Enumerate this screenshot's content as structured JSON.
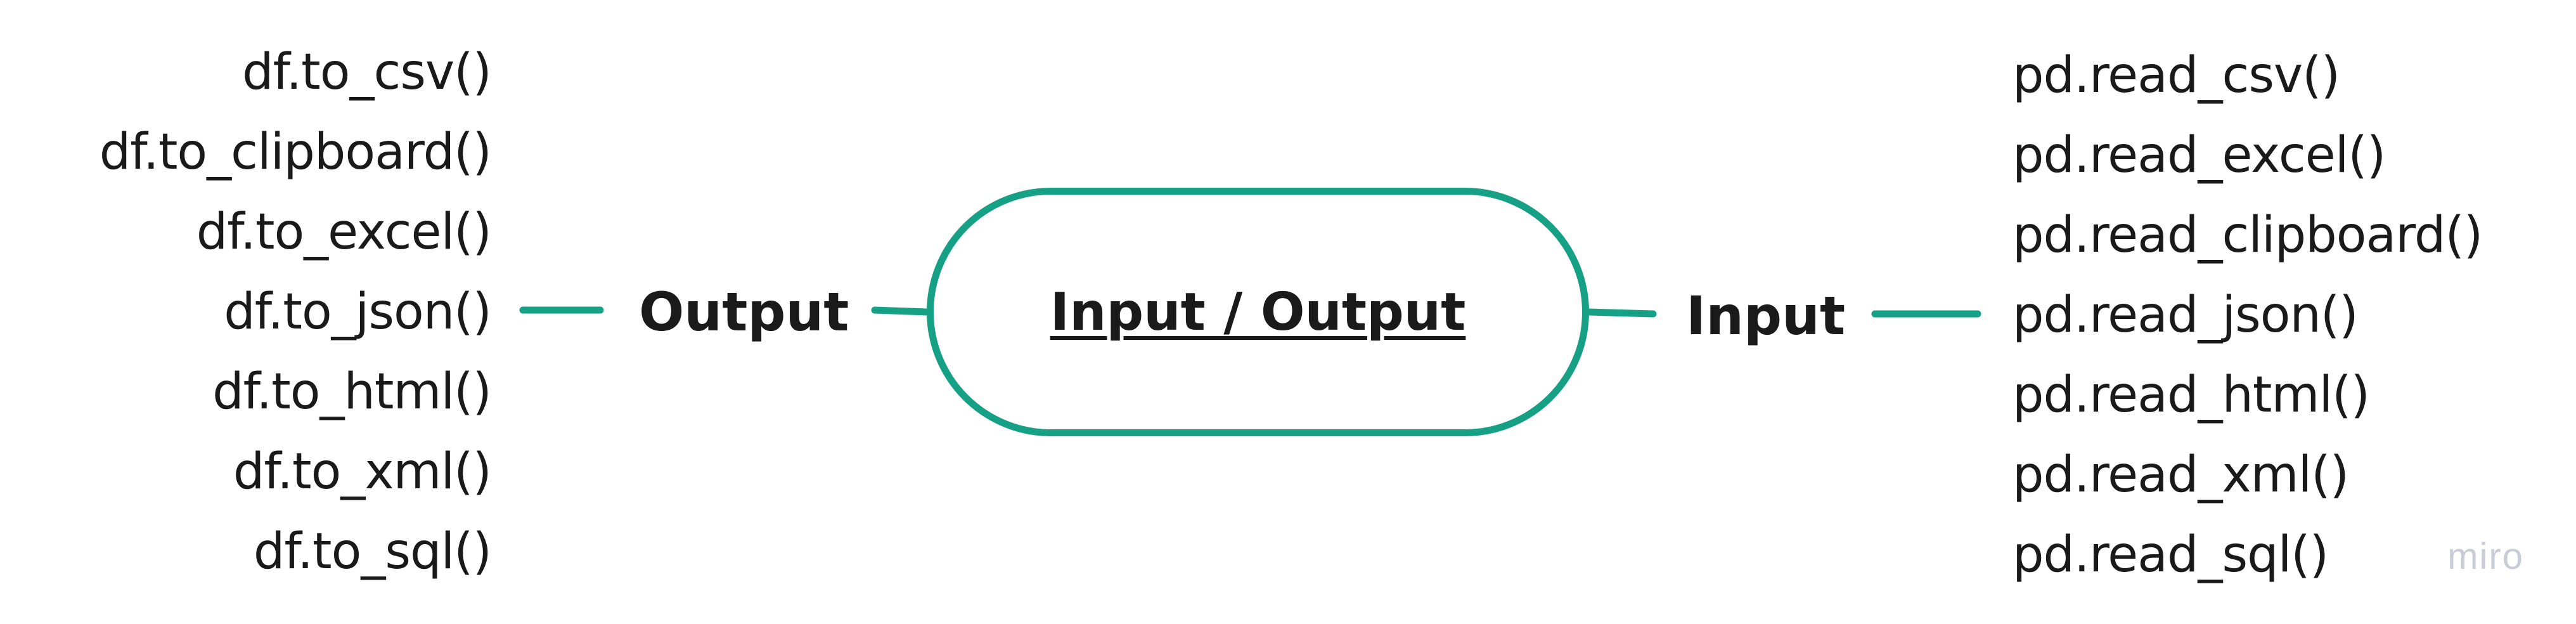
{
  "diagram": {
    "center_label": "Input / Output",
    "left_branch_label": "Output",
    "right_branch_label": "Input",
    "accent_color": "#16a085",
    "left_items": [
      "df.to_csv()",
      "df.to_clipboard()",
      "df.to_excel()",
      "df.to_json()",
      "df.to_html()",
      "df.to_xml()",
      "df.to_sql()"
    ],
    "right_items": [
      "pd.read_csv()",
      "pd.read_excel()",
      "pd.read_clipboard()",
      "pd.read_json()",
      "pd.read_html()",
      "pd.read_xml()",
      "pd.read_sql()"
    ]
  },
  "watermark": "miro"
}
